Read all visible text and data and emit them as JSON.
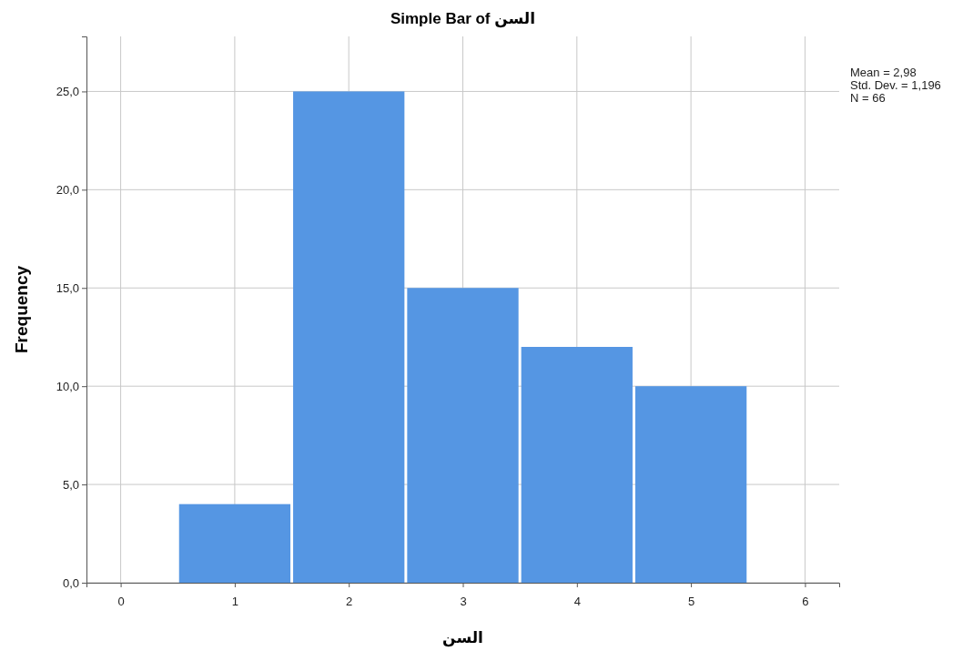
{
  "chart_data": {
    "type": "histogram",
    "title": "Simple Bar of السن",
    "xlabel": "السن",
    "ylabel": "Frequency",
    "bins": [
      0.5,
      1.5,
      2.5,
      3.5,
      4.5,
      5.5
    ],
    "values": [
      4,
      25,
      15,
      12,
      10
    ],
    "color": "#5596e3",
    "xlim": [
      -0.3,
      6.3
    ],
    "xticks": [
      0,
      1,
      2,
      3,
      4,
      5,
      6
    ],
    "ylim": [
      0,
      27.8
    ],
    "yticks": [
      {
        "value": 0,
        "label": "0,0"
      },
      {
        "value": 5,
        "label": "5,0"
      },
      {
        "value": 10,
        "label": "10,0"
      },
      {
        "value": 15,
        "label": "15,0"
      },
      {
        "value": 20,
        "label": "20,0"
      },
      {
        "value": 25,
        "label": "25,0"
      }
    ],
    "grid": true,
    "annotations": [
      "Mean = 2,98",
      "Std. Dev. = 1,196",
      "N = 66"
    ]
  }
}
